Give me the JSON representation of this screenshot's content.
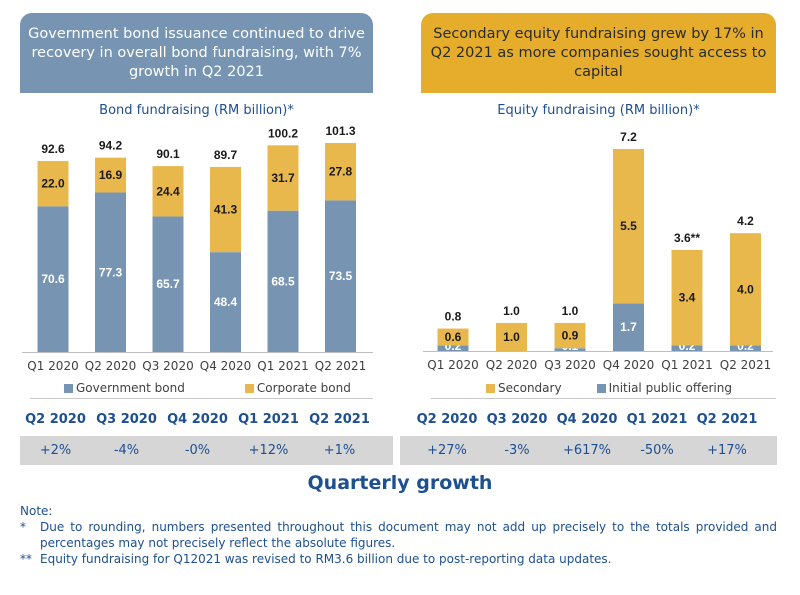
{
  "banners": {
    "bond": "Government bond issuance continued to drive recovery in overall bond fundraising, with 7% growth in Q2 2021",
    "equity": "Secondary equity fundraising grew by 17% in Q2 2021 as more companies sought access to capital"
  },
  "colors": {
    "government_bond": "#7795b3",
    "corporate_bond": "#e9b84c",
    "secondary": "#e9b84c",
    "ipo": "#7795b3",
    "text_blue": "#1d4f91",
    "banner_bond": "#7795b3",
    "banner_equity": "#e5ad2b"
  },
  "chart_data": [
    {
      "type": "bar",
      "stacked": true,
      "title": "Bond fundraising (RM billion)*",
      "categories": [
        "Q1 2020",
        "Q2 2020",
        "Q3 2020",
        "Q4 2020",
        "Q1 2021",
        "Q2 2021"
      ],
      "series": [
        {
          "name": "Government bond",
          "values": [
            70.6,
            77.3,
            65.7,
            48.4,
            68.5,
            73.5
          ],
          "labels": [
            "70.6",
            "77.3",
            "65.7",
            "48.4",
            "68.5",
            "73.5"
          ]
        },
        {
          "name": "Corporate bond",
          "values": [
            22.0,
            16.9,
            24.4,
            41.3,
            31.7,
            27.8
          ],
          "labels": [
            "22.0",
            "16.9",
            "24.4",
            "41.3",
            "31.7",
            "27.8"
          ]
        }
      ],
      "totals": [
        92.6,
        94.2,
        90.1,
        89.7,
        100.2,
        101.3
      ],
      "total_labels": [
        "92.6",
        "94.2",
        "90.1",
        "89.7",
        "100.2",
        "101.3"
      ],
      "xlabel": "",
      "ylabel": "",
      "ylim": [
        0,
        101.3
      ],
      "grid": false,
      "legend": "bottom"
    },
    {
      "type": "bar",
      "stacked": true,
      "title": "Equity fundraising (RM billion)*",
      "categories": [
        "Q1 2020",
        "Q2 2020",
        "Q3 2020",
        "Q4 2020",
        "Q1 2021",
        "Q2 2021"
      ],
      "series": [
        {
          "name": "Initial public offering",
          "values": [
            0.2,
            0.0,
            0.1,
            1.7,
            0.2,
            0.2
          ],
          "labels": [
            "0.2",
            "",
            "0.1",
            "1.7",
            "0.2",
            "0.2"
          ]
        },
        {
          "name": "Secondary",
          "values": [
            0.6,
            1.0,
            0.9,
            5.5,
            3.4,
            4.0
          ],
          "labels": [
            "0.6",
            "1.0",
            "0.9",
            "5.5",
            "3.4",
            "4.0"
          ]
        }
      ],
      "totals": [
        0.8,
        1.0,
        1.0,
        7.2,
        3.6,
        4.2
      ],
      "total_labels": [
        "0.8",
        "1.0",
        "1.0",
        "7.2",
        "3.6**",
        "4.2"
      ],
      "legend_order": [
        "Secondary",
        "Initial public offering"
      ],
      "xlabel": "",
      "ylabel": "",
      "ylim": [
        0,
        7.2
      ],
      "grid": false,
      "legend": "bottom"
    }
  ],
  "growth": {
    "title": "Quarterly growth",
    "bond": {
      "quarters": [
        "Q2 2020",
        "Q3 2020",
        "Q4 2020",
        "Q1 2021",
        "Q2 2021"
      ],
      "values": [
        "+2%",
        "-4%",
        "-0%",
        "+12%",
        "+1%"
      ]
    },
    "equity": {
      "quarters": [
        "Q2 2020",
        "Q3 2020",
        "Q4 2020",
        "Q1 2021",
        "Q2 2021"
      ],
      "values": [
        "+27%",
        "-3%",
        "+617%",
        "-50%",
        "+17%"
      ]
    }
  },
  "notes": {
    "heading": "Note:",
    "items": [
      {
        "mark": "*",
        "text": "Due to rounding, numbers presented throughout this document may not add up precisely to the totals provided and percentages may not precisely reflect the absolute figures."
      },
      {
        "mark": "**",
        "text": "Equity fundraising for Q12021 was revised to RM3.6 billion due to post-reporting data updates."
      }
    ]
  }
}
